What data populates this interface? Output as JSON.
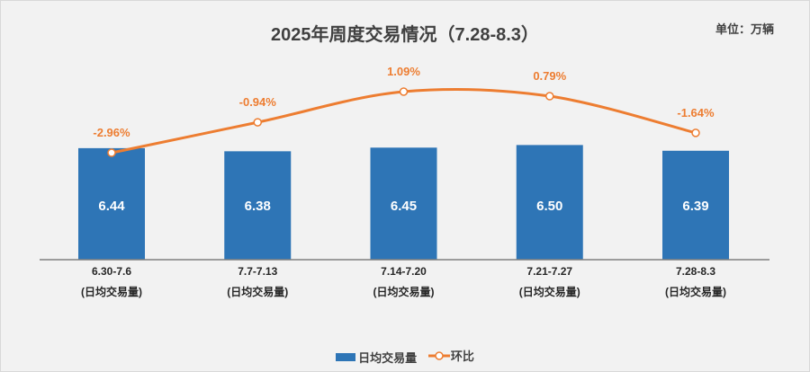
{
  "chart_data": {
    "type": "bar",
    "title": "2025年周度交易情况（7.28-8.3）",
    "unit_label": "单位：万辆",
    "categories": [
      "6.30-7.6",
      "7.7-7.13",
      "7.14-7.20",
      "7.21-7.27",
      "7.28-8.3"
    ],
    "category_sublabel": "(日均交易量)",
    "series": [
      {
        "name": "日均交易量",
        "type": "bar",
        "color": "#2e75b6",
        "values": [
          6.44,
          6.38,
          6.45,
          6.5,
          6.39
        ],
        "labels": [
          "6.44",
          "6.38",
          "6.45",
          "6.50",
          "6.39"
        ]
      },
      {
        "name": "环比",
        "type": "line",
        "color": "#ed7d31",
        "values": [
          -2.96,
          -0.94,
          1.09,
          0.79,
          -1.64
        ],
        "labels": [
          "-2.96%",
          "-0.94%",
          "1.09%",
          "0.79%",
          "-1.64%"
        ]
      }
    ],
    "grid": false,
    "legend": "bottom"
  }
}
